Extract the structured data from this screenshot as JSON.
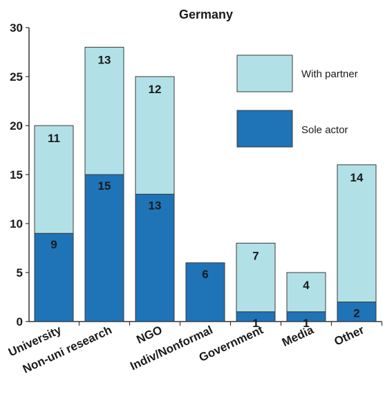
{
  "chart_data": {
    "type": "bar",
    "stacked": true,
    "title": "Germany",
    "xlabel": "",
    "ylabel": "",
    "ylim": [
      0,
      30
    ],
    "yticks": [
      0,
      5,
      10,
      15,
      20,
      25,
      30
    ],
    "grid": false,
    "legend_position": "top-right",
    "categories": [
      "University",
      "Non-uni research",
      "NGO",
      "Indiv/Nonformal",
      "Government",
      "Media",
      "Other"
    ],
    "series": [
      {
        "name": "Sole actor",
        "color": "#1f73b7",
        "values": [
          9,
          15,
          13,
          6,
          1,
          1,
          2
        ]
      },
      {
        "name": "With partner",
        "color": "#b2e0e7",
        "values": [
          11,
          13,
          12,
          0,
          7,
          4,
          14
        ]
      }
    ],
    "legend_order": [
      "With partner",
      "Sole actor"
    ]
  }
}
